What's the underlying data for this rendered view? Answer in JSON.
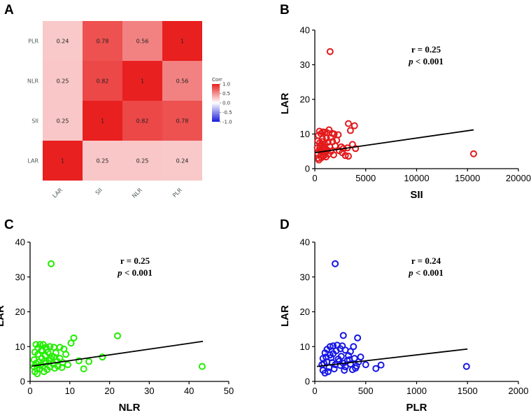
{
  "figure": {
    "panel_letters": [
      "A",
      "B",
      "C",
      "D"
    ]
  },
  "chart_data": [
    {
      "panel": "A",
      "type": "heatmap",
      "x_labels": [
        "LAR",
        "SII",
        "NLR",
        "PLR"
      ],
      "y_labels": [
        "LAR",
        "SII",
        "NLR",
        "PLR"
      ],
      "matrix": [
        [
          1,
          0.25,
          0.25,
          0.24
        ],
        [
          0.25,
          1,
          0.82,
          0.78
        ],
        [
          0.25,
          0.82,
          1,
          0.56
        ],
        [
          0.24,
          0.78,
          0.56,
          1
        ]
      ],
      "legend": {
        "title": "Corr",
        "ticks": [
          "1.0",
          "0.5",
          "0.0",
          "-0.5",
          "-1.0"
        ],
        "tick_values": [
          1.0,
          0.5,
          0.0,
          -0.5,
          -1.0
        ],
        "range": [
          -1,
          1
        ],
        "colors": {
          "low": "#1a1adb",
          "mid": "#ffffff",
          "high": "#e8201f"
        }
      }
    },
    {
      "panel": "B",
      "type": "scatter",
      "xlabel": "SII",
      "ylabel": "LAR",
      "xlim": [
        0,
        20000
      ],
      "ylim": [
        0,
        40
      ],
      "xticks": [
        "0",
        "5000",
        "10000",
        "15000",
        "20000"
      ],
      "xtick_values": [
        0,
        5000,
        10000,
        15000,
        20000
      ],
      "yticks": [
        "0",
        "10",
        "20",
        "30",
        "40"
      ],
      "ytick_values": [
        0,
        10,
        20,
        30,
        40
      ],
      "annotation": {
        "r": "r = 0.25",
        "p_symbol": "p",
        "p_rest": " < 0.001"
      },
      "regression": {
        "x": [
          0,
          15600
        ],
        "y": [
          4.6,
          11.2
        ]
      },
      "color": "#e31a1c",
      "points": [
        [
          1500,
          33.8
        ],
        [
          15600,
          4.3
        ],
        [
          3300,
          13.0
        ],
        [
          3500,
          11.0
        ],
        [
          3900,
          12.4
        ],
        [
          3700,
          7.0
        ],
        [
          4000,
          5.8
        ],
        [
          3200,
          6.0
        ],
        [
          3300,
          3.6
        ],
        [
          3000,
          3.8
        ],
        [
          2800,
          5.8
        ],
        [
          2600,
          6.3
        ],
        [
          2300,
          9.8
        ],
        [
          1900,
          10.0
        ],
        [
          1700,
          10.2
        ],
        [
          1400,
          11.2
        ],
        [
          1200,
          10.4
        ],
        [
          1000,
          10.5
        ],
        [
          800,
          10.6
        ],
        [
          600,
          10.1
        ],
        [
          450,
          10.8
        ],
        [
          350,
          9.6
        ],
        [
          300,
          8.0
        ],
        [
          250,
          6.0
        ],
        [
          300,
          4.4
        ],
        [
          350,
          3.0
        ],
        [
          400,
          2.5
        ],
        [
          500,
          7.5
        ],
        [
          550,
          5.2
        ],
        [
          600,
          4.0
        ],
        [
          650,
          3.2
        ],
        [
          700,
          6.8
        ],
        [
          750,
          8.6
        ],
        [
          800,
          5.6
        ],
        [
          850,
          4.6
        ],
        [
          900,
          3.8
        ],
        [
          950,
          7.2
        ],
        [
          1000,
          6.0
        ],
        [
          1050,
          4.8
        ],
        [
          1100,
          3.4
        ],
        [
          1150,
          8.8
        ],
        [
          1200,
          5.4
        ],
        [
          1300,
          7.6
        ],
        [
          1350,
          4.2
        ],
        [
          1450,
          6.4
        ],
        [
          1550,
          9.0
        ],
        [
          1600,
          5.0
        ],
        [
          1750,
          7.8
        ],
        [
          1850,
          4.0
        ],
        [
          2000,
          6.6
        ],
        [
          2150,
          8.2
        ],
        [
          2400,
          5.2
        ],
        [
          2700,
          4.6
        ],
        [
          480,
          5.8
        ],
        [
          520,
          6.6
        ],
        [
          620,
          5.4
        ],
        [
          680,
          4.8
        ],
        [
          720,
          7.8
        ],
        [
          780,
          3.6
        ],
        [
          870,
          6.2
        ]
      ]
    },
    {
      "panel": "C",
      "type": "scatter",
      "xlabel": "NLR",
      "ylabel": "LAR",
      "xlim": [
        0,
        50
      ],
      "ylim": [
        0,
        40
      ],
      "xticks": [
        "0",
        "10",
        "20",
        "30",
        "40",
        "50"
      ],
      "xtick_values": [
        0,
        10,
        20,
        30,
        40,
        50
      ],
      "yticks": [
        "0",
        "10",
        "20",
        "30",
        "40"
      ],
      "ytick_values": [
        0,
        10,
        20,
        30,
        40
      ],
      "annotation": {
        "r": "r = 0.25",
        "p_symbol": "p",
        "p_rest": " < 0.001"
      },
      "regression": {
        "x": [
          0.5,
          43.5
        ],
        "y": [
          4.4,
          11.5
        ]
      },
      "color": "#22ee00",
      "points": [
        [
          5.3,
          33.8
        ],
        [
          43.3,
          4.3
        ],
        [
          22.0,
          13.1
        ],
        [
          11.0,
          12.5
        ],
        [
          10.3,
          11.0
        ],
        [
          18.2,
          7.0
        ],
        [
          12.3,
          5.9
        ],
        [
          14.8,
          5.7
        ],
        [
          13.5,
          3.6
        ],
        [
          8.0,
          4.0
        ],
        [
          8.5,
          9.3
        ],
        [
          7.5,
          9.8
        ],
        [
          6.0,
          9.8
        ],
        [
          5.0,
          10.0
        ],
        [
          4.0,
          9.8
        ],
        [
          3.3,
          10.6
        ],
        [
          2.5,
          10.6
        ],
        [
          1.5,
          10.6
        ],
        [
          1.2,
          8.4
        ],
        [
          1.0,
          6.2
        ],
        [
          1.0,
          4.2
        ],
        [
          1.2,
          2.8
        ],
        [
          1.8,
          2.2
        ],
        [
          2.0,
          7.8
        ],
        [
          2.2,
          5.6
        ],
        [
          2.5,
          3.6
        ],
        [
          2.8,
          8.8
        ],
        [
          3.0,
          6.6
        ],
        [
          3.2,
          4.4
        ],
        [
          3.5,
          2.8
        ],
        [
          3.8,
          7.4
        ],
        [
          4.0,
          5.2
        ],
        [
          4.3,
          3.4
        ],
        [
          4.5,
          8.4
        ],
        [
          4.8,
          6.0
        ],
        [
          5.0,
          4.2
        ],
        [
          5.5,
          7.2
        ],
        [
          5.8,
          5.0
        ],
        [
          6.2,
          3.8
        ],
        [
          6.5,
          8.2
        ],
        [
          6.8,
          5.8
        ],
        [
          7.0,
          4.4
        ],
        [
          7.5,
          6.6
        ],
        [
          8.2,
          5.4
        ],
        [
          9.0,
          7.8
        ],
        [
          9.5,
          4.8
        ],
        [
          2.0,
          9.6
        ],
        [
          3.0,
          9.0
        ],
        [
          4.2,
          9.2
        ],
        [
          1.5,
          5.2
        ],
        [
          1.7,
          3.6
        ],
        [
          2.6,
          4.6
        ],
        [
          3.6,
          5.8
        ],
        [
          5.2,
          6.6
        ],
        [
          6.0,
          7.0
        ]
      ]
    },
    {
      "panel": "D",
      "type": "scatter",
      "xlabel": "PLR",
      "ylabel": "LAR",
      "xlim": [
        0,
        2000
      ],
      "ylim": [
        0,
        40
      ],
      "xticks": [
        "0",
        "500",
        "1000",
        "1500",
        "2000"
      ],
      "xtick_values": [
        0,
        500,
        1000,
        1500,
        2000
      ],
      "yticks": [
        "0",
        "10",
        "20",
        "30",
        "40"
      ],
      "ytick_values": [
        0,
        10,
        20,
        30,
        40
      ],
      "annotation": {
        "r": "r = 0.24",
        "p_symbol": "p",
        "p_rest": " < 0.001"
      },
      "regression": {
        "x": [
          20,
          1500
        ],
        "y": [
          4.3,
          9.3
        ]
      },
      "color": "#1616e6",
      "points": [
        [
          200,
          33.8
        ],
        [
          1490,
          4.3
        ],
        [
          280,
          13.2
        ],
        [
          420,
          12.5
        ],
        [
          270,
          10.2
        ],
        [
          380,
          10.0
        ],
        [
          650,
          4.7
        ],
        [
          600,
          3.7
        ],
        [
          500,
          4.8
        ],
        [
          450,
          7.0
        ],
        [
          430,
          5.6
        ],
        [
          400,
          3.8
        ],
        [
          350,
          8.6
        ],
        [
          320,
          6.0
        ],
        [
          300,
          4.2
        ],
        [
          250,
          9.4
        ],
        [
          220,
          10.4
        ],
        [
          180,
          10.2
        ],
        [
          150,
          10.0
        ],
        [
          120,
          9.2
        ],
        [
          100,
          8.2
        ],
        [
          80,
          6.6
        ],
        [
          70,
          4.8
        ],
        [
          80,
          3.2
        ],
        [
          100,
          2.4
        ],
        [
          130,
          2.8
        ],
        [
          150,
          7.6
        ],
        [
          170,
          5.4
        ],
        [
          190,
          3.6
        ],
        [
          210,
          8.8
        ],
        [
          230,
          6.4
        ],
        [
          250,
          4.6
        ],
        [
          260,
          7.2
        ],
        [
          280,
          5.2
        ],
        [
          300,
          9.0
        ],
        [
          330,
          7.4
        ],
        [
          350,
          5.0
        ],
        [
          370,
          3.4
        ],
        [
          390,
          6.6
        ],
        [
          410,
          4.4
        ],
        [
          120,
          5.6
        ],
        [
          140,
          4.0
        ],
        [
          160,
          6.8
        ],
        [
          200,
          4.8
        ],
        [
          240,
          5.8
        ],
        [
          110,
          7.0
        ],
        [
          90,
          5.2
        ],
        [
          180,
          8.0
        ],
        [
          290,
          3.2
        ],
        [
          340,
          6.2
        ]
      ]
    }
  ]
}
